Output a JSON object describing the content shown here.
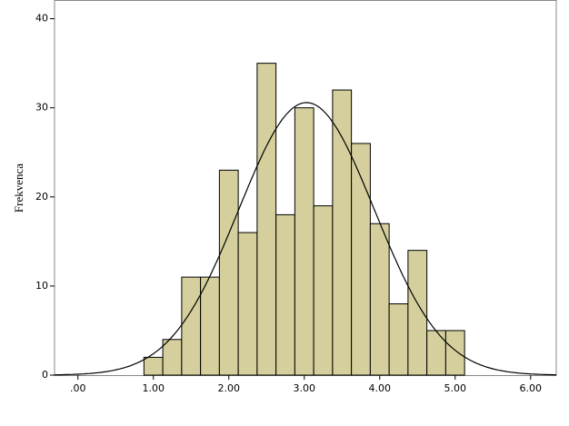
{
  "chart_data": {
    "type": "histogram",
    "ylabel": "Frekvenca",
    "bins": [
      0.875,
      1.125,
      1.375,
      1.625,
      1.875,
      2.125,
      2.375,
      2.625,
      2.875,
      3.125,
      3.375,
      3.625,
      3.875,
      4.125,
      4.375,
      4.625,
      4.875,
      5.125
    ],
    "values": [
      2,
      4,
      11,
      11,
      23,
      16,
      35,
      18,
      30,
      19,
      32,
      26,
      17,
      8,
      14,
      5,
      5
    ],
    "color": "#d4cf9c",
    "curve": {
      "mean": 3.03,
      "std": 0.9
    },
    "xlim": [
      -0.31,
      6.34
    ],
    "ylim": [
      0,
      42.1
    ],
    "xticks": [
      {
        "value": 0,
        "label": ".00"
      },
      {
        "value": 1,
        "label": "1.00"
      },
      {
        "value": 2,
        "label": "2.00"
      },
      {
        "value": 3,
        "label": "3.00"
      },
      {
        "value": 4,
        "label": "4.00"
      },
      {
        "value": 5,
        "label": "5.00"
      },
      {
        "value": 6,
        "label": "6.00"
      }
    ],
    "yticks": [
      0,
      10,
      20,
      30,
      40
    ]
  }
}
